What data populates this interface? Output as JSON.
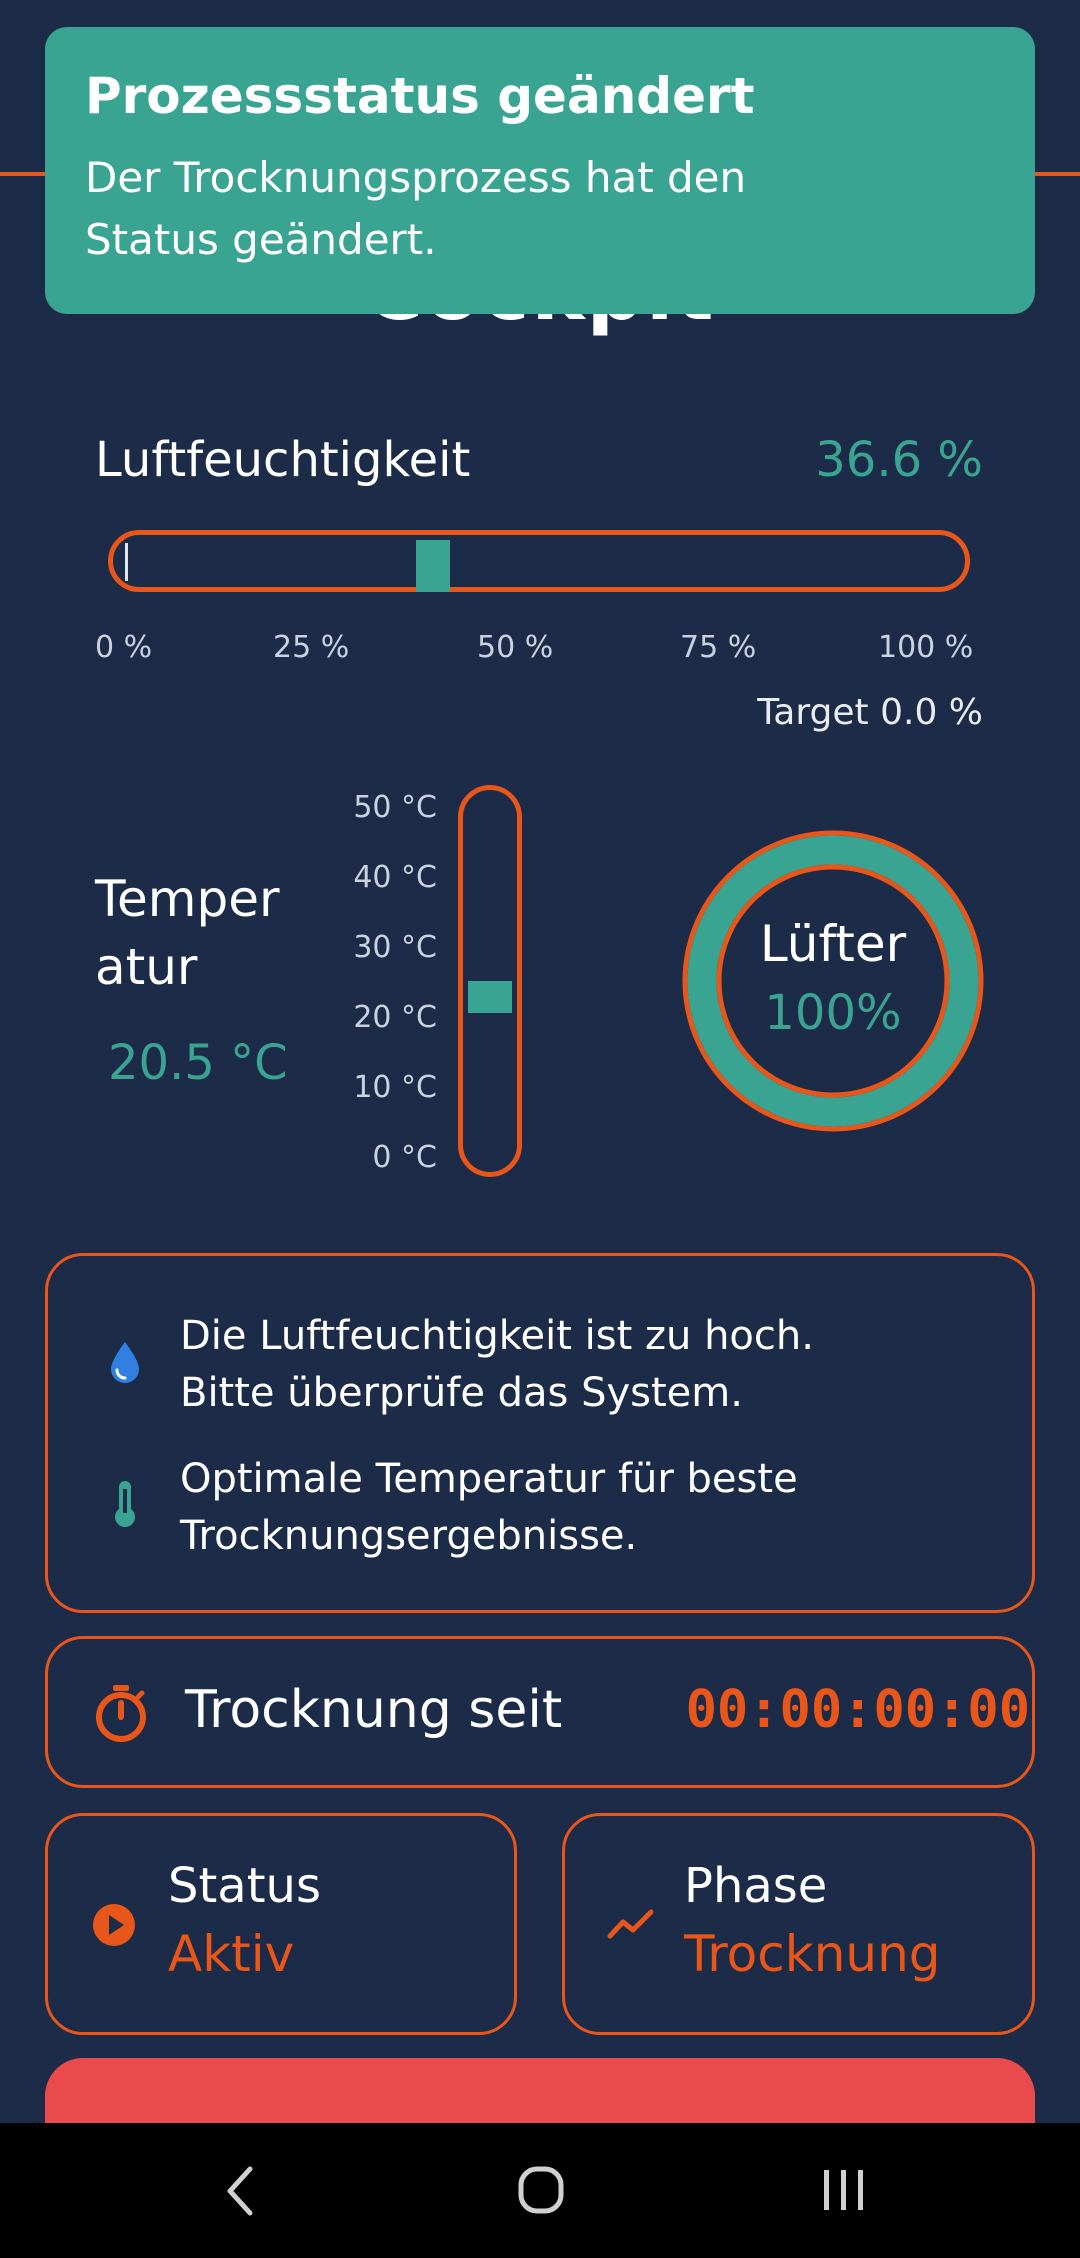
{
  "header": {
    "title": "Cockpit"
  },
  "toast": {
    "title": "Prozessstatus geändert",
    "message_line1": "Der Trocknungsprozess hat den",
    "message_line2": "Status geändert."
  },
  "humidity": {
    "label": "Luftfeuchtigkeit",
    "value_text": "36.6 %",
    "value": 36.6,
    "ticks": [
      "0 %",
      "25 %",
      "50 %",
      "75 %",
      "100 %"
    ],
    "target_label": "Target",
    "target_value": "0.0 %"
  },
  "temperature": {
    "label_line1": "Temper",
    "label_line2": "atur",
    "value_text": "20.5 °C",
    "value": 20.5,
    "ticks": [
      "50 °C",
      "40 °C",
      "30 °C",
      "20 °C",
      "10 °C",
      "0 °C"
    ]
  },
  "fan": {
    "label": "Lüfter",
    "value_text": "100%",
    "value": 100
  },
  "messages": [
    {
      "icon": "water-drop-icon",
      "line1": "Die Luftfeuchtigkeit ist zu hoch.",
      "line2": "Bitte überprüfe das System."
    },
    {
      "icon": "thermometer-icon",
      "line1": "Optimale Temperatur für beste",
      "line2": "Trocknungsergebnisse."
    }
  ],
  "timer": {
    "label": "Trocknung seit",
    "value": "00:00:00:00"
  },
  "status": {
    "title": "Status",
    "value": "Aktiv"
  },
  "phase": {
    "title": "Phase",
    "value": "Trocknung"
  },
  "colors": {
    "background": "#1c2b47",
    "accent": "#e8561a",
    "teal": "#3aa492",
    "danger": "#e94a4c"
  },
  "navbar": {
    "back": "back-icon",
    "home": "home-icon",
    "recents": "recents-icon"
  }
}
